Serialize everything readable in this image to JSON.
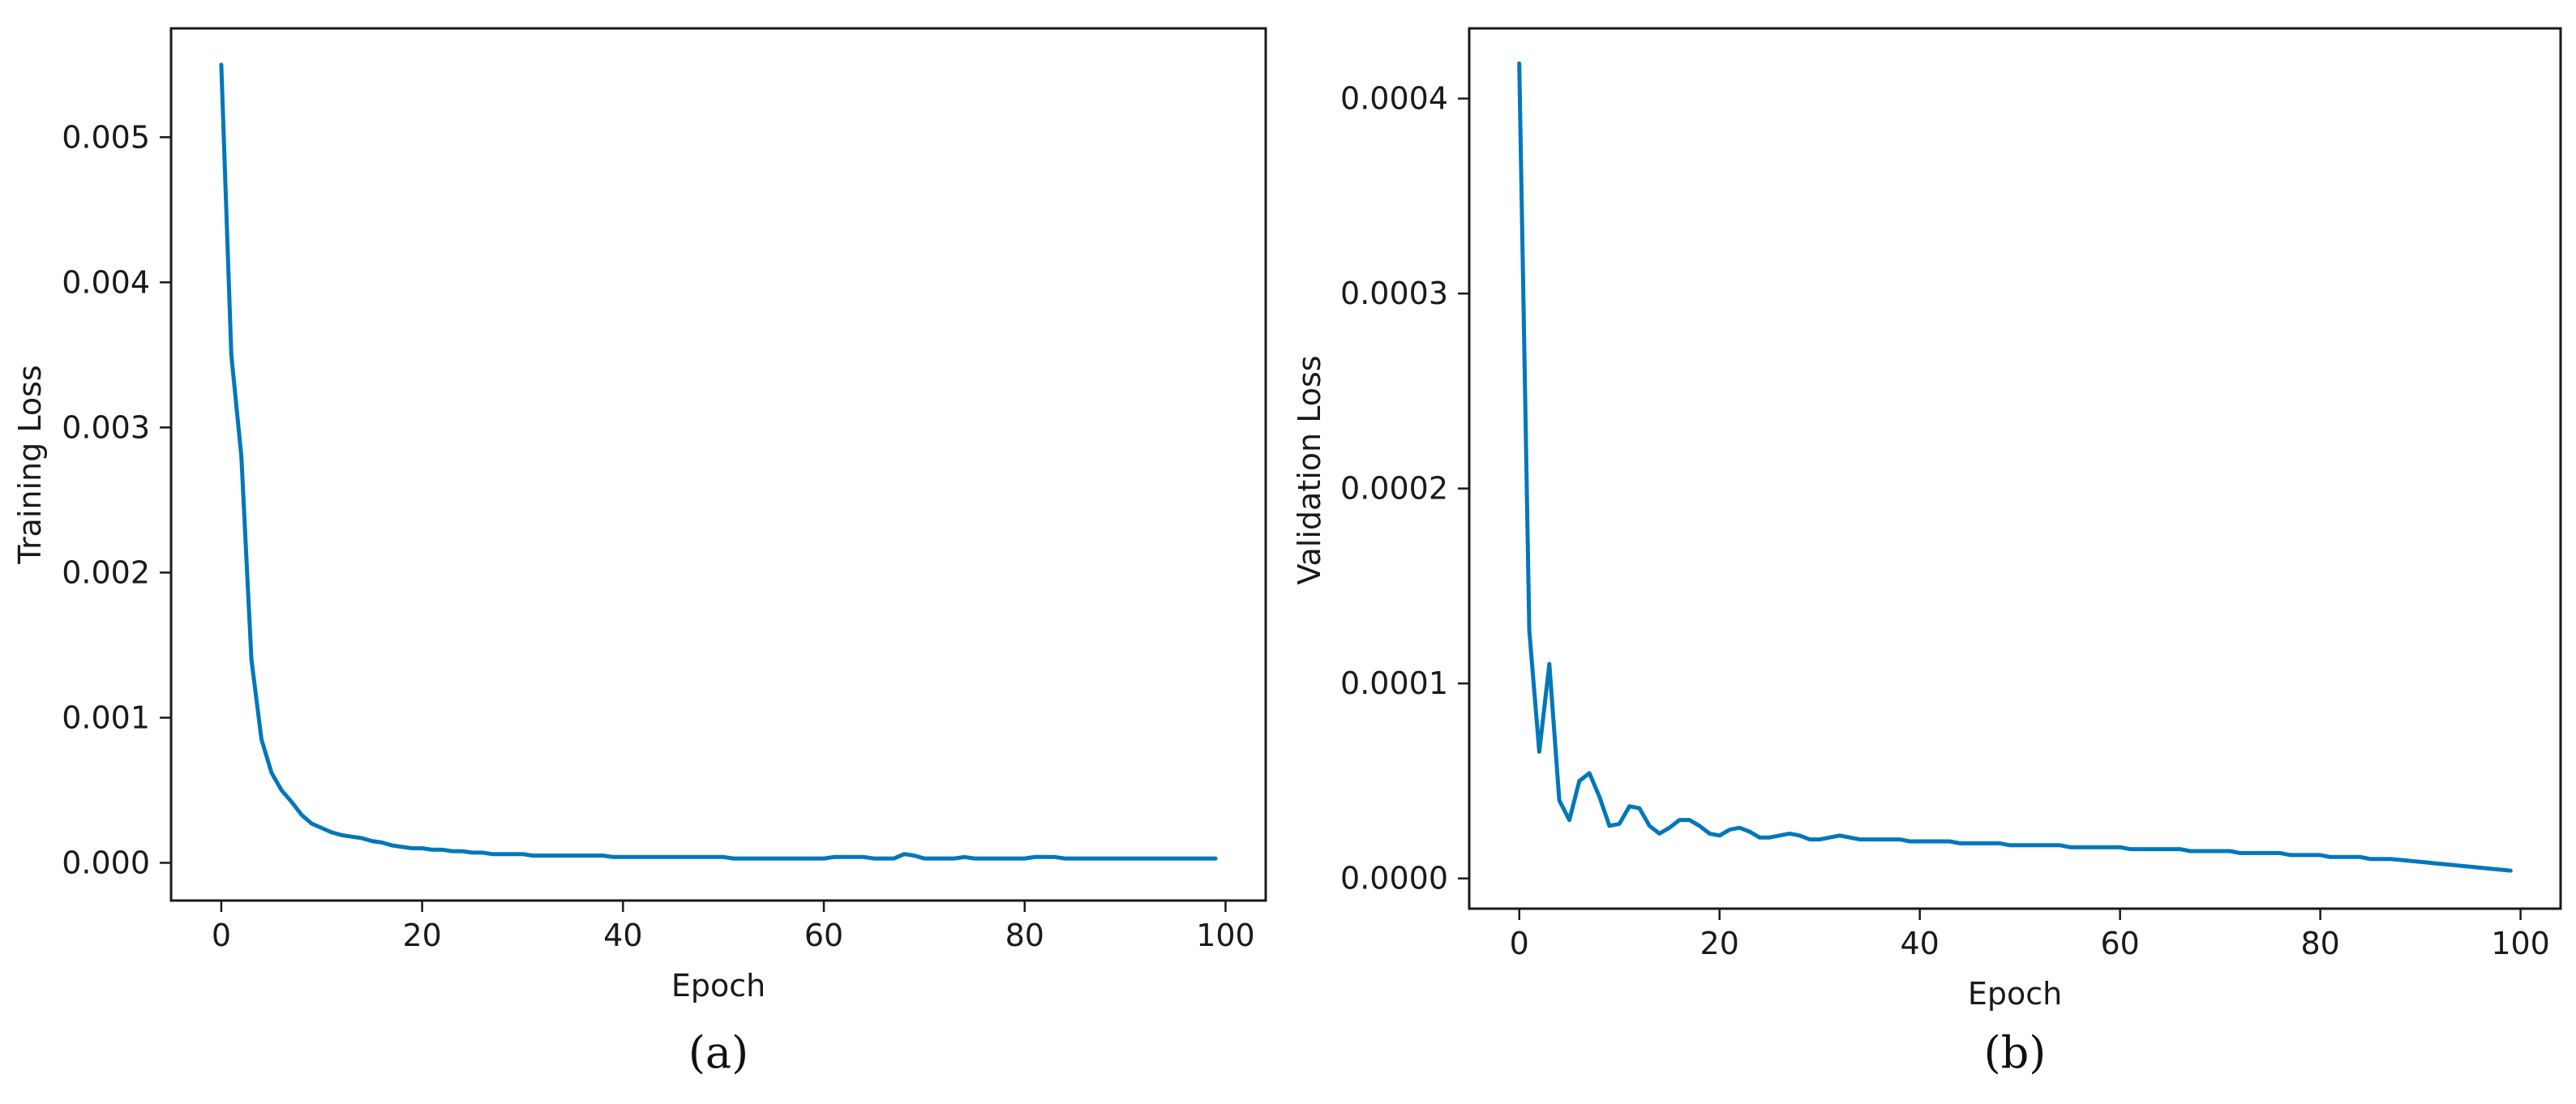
{
  "chart_data": [
    {
      "type": "line",
      "caption": "(a)",
      "xlabel": "Epoch",
      "ylabel": "Training Loss",
      "xlim": [
        -5,
        104
      ],
      "ylim": [
        -0.00026,
        0.00575
      ],
      "xticks": [
        0,
        20,
        40,
        60,
        80,
        100
      ],
      "xtick_labels": [
        "0",
        "20",
        "40",
        "60",
        "80",
        "100"
      ],
      "yticks": [
        0,
        0.001,
        0.002,
        0.003,
        0.004,
        0.005
      ],
      "ytick_labels": [
        "0.000",
        "0.001",
        "0.002",
        "0.003",
        "0.004",
        "0.005"
      ],
      "grid": false,
      "color": "#0077bb",
      "series": [
        {
          "x": [
            0,
            1,
            2,
            3,
            4,
            5,
            6,
            7,
            8,
            9,
            10,
            11,
            12,
            13,
            14,
            15,
            16,
            17,
            18,
            19,
            20,
            21,
            22,
            23,
            24,
            25,
            26,
            27,
            28,
            29,
            30,
            31,
            32,
            33,
            34,
            35,
            36,
            37,
            38,
            39,
            40,
            41,
            42,
            43,
            44,
            45,
            46,
            47,
            48,
            49,
            50,
            51,
            52,
            53,
            54,
            55,
            56,
            57,
            58,
            59,
            60,
            61,
            62,
            63,
            64,
            65,
            66,
            67,
            68,
            69,
            70,
            71,
            72,
            73,
            74,
            75,
            76,
            77,
            78,
            79,
            80,
            81,
            82,
            83,
            84,
            85,
            86,
            87,
            88,
            89,
            90,
            91,
            92,
            93,
            94,
            95,
            96,
            97,
            98,
            99
          ],
          "y": [
            0.0055,
            0.0035,
            0.0028,
            0.0014,
            0.00085,
            0.00062,
            0.0005,
            0.00042,
            0.00033,
            0.00027,
            0.00024,
            0.00021,
            0.00019,
            0.00018,
            0.00017,
            0.00015,
            0.00014,
            0.00012,
            0.00011,
            0.0001,
            0.0001,
            9e-05,
            9e-05,
            8e-05,
            8e-05,
            7e-05,
            7e-05,
            6e-05,
            6e-05,
            6e-05,
            6e-05,
            5e-05,
            5e-05,
            5e-05,
            5e-05,
            5e-05,
            5e-05,
            5e-05,
            5e-05,
            4e-05,
            4e-05,
            4e-05,
            4e-05,
            4e-05,
            4e-05,
            4e-05,
            4e-05,
            4e-05,
            4e-05,
            4e-05,
            4e-05,
            3e-05,
            3e-05,
            3e-05,
            3e-05,
            3e-05,
            3e-05,
            3e-05,
            3e-05,
            3e-05,
            3e-05,
            4e-05,
            4e-05,
            4e-05,
            4e-05,
            3e-05,
            3e-05,
            3e-05,
            6e-05,
            5e-05,
            3e-05,
            3e-05,
            3e-05,
            3e-05,
            4e-05,
            3e-05,
            3e-05,
            3e-05,
            3e-05,
            3e-05,
            3e-05,
            4e-05,
            4e-05,
            4e-05,
            3e-05,
            3e-05,
            3e-05,
            3e-05,
            3e-05,
            3e-05,
            3e-05,
            3e-05,
            3e-05,
            3e-05,
            3e-05,
            3e-05,
            3e-05,
            3e-05,
            3e-05,
            3e-05
          ]
        }
      ]
    },
    {
      "type": "line",
      "caption": "(b)",
      "xlabel": "Epoch",
      "ylabel": "Validation Loss",
      "xlim": [
        -5,
        104
      ],
      "ylim": [
        -1.55e-05,
        0.000436
      ],
      "xticks": [
        0,
        20,
        40,
        60,
        80,
        100
      ],
      "xtick_labels": [
        "0",
        "20",
        "40",
        "60",
        "80",
        "100"
      ],
      "yticks": [
        0,
        0.0001,
        0.0002,
        0.0003,
        0.0004
      ],
      "ytick_labels": [
        "0.0000",
        "0.0001",
        "0.0002",
        "0.0003",
        "0.0004"
      ],
      "grid": false,
      "color": "#0077bb",
      "series": [
        {
          "x": [
            0,
            1,
            2,
            3,
            4,
            5,
            6,
            7,
            8,
            9,
            10,
            11,
            12,
            13,
            14,
            15,
            16,
            17,
            18,
            19,
            20,
            21,
            22,
            23,
            24,
            25,
            26,
            27,
            28,
            29,
            30,
            31,
            32,
            33,
            34,
            35,
            36,
            37,
            38,
            39,
            40,
            41,
            42,
            43,
            44,
            45,
            46,
            47,
            48,
            49,
            50,
            51,
            52,
            53,
            54,
            55,
            56,
            57,
            58,
            59,
            60,
            61,
            62,
            63,
            64,
            65,
            66,
            67,
            68,
            69,
            70,
            71,
            72,
            73,
            74,
            75,
            76,
            77,
            78,
            79,
            80,
            81,
            82,
            83,
            84,
            85,
            86,
            87,
            88,
            89,
            90,
            91,
            92,
            93,
            94,
            95,
            96,
            97,
            98,
            99
          ],
          "y": [
            0.000418,
            0.000127,
            6.5e-05,
            0.00011,
            4e-05,
            3e-05,
            5e-05,
            5.4e-05,
            4.2e-05,
            2.7e-05,
            2.8e-05,
            3.7e-05,
            3.6e-05,
            2.7e-05,
            2.3e-05,
            2.6e-05,
            3e-05,
            3e-05,
            2.7e-05,
            2.3e-05,
            2.2e-05,
            2.5e-05,
            2.6e-05,
            2.4e-05,
            2.1e-05,
            2.1e-05,
            2.2e-05,
            2.3e-05,
            2.2e-05,
            2e-05,
            2e-05,
            2.1e-05,
            2.2e-05,
            2.1e-05,
            2e-05,
            2e-05,
            2e-05,
            2e-05,
            2e-05,
            1.9e-05,
            1.9e-05,
            1.9e-05,
            1.9e-05,
            1.9e-05,
            1.8e-05,
            1.8e-05,
            1.8e-05,
            1.8e-05,
            1.8e-05,
            1.7e-05,
            1.7e-05,
            1.7e-05,
            1.7e-05,
            1.7e-05,
            1.7e-05,
            1.6e-05,
            1.6e-05,
            1.6e-05,
            1.6e-05,
            1.6e-05,
            1.6e-05,
            1.5e-05,
            1.5e-05,
            1.5e-05,
            1.5e-05,
            1.5e-05,
            1.5e-05,
            1.4e-05,
            1.4e-05,
            1.4e-05,
            1.4e-05,
            1.4e-05,
            1.3e-05,
            1.3e-05,
            1.3e-05,
            1.3e-05,
            1.3e-05,
            1.2e-05,
            1.2e-05,
            1.2e-05,
            1.2e-05,
            1.1e-05,
            1.1e-05,
            1.1e-05,
            1.1e-05,
            1e-05,
            1e-05,
            1e-05,
            9.5e-06,
            9e-06,
            8.5e-06,
            8e-06,
            7.5e-06,
            7e-06,
            6.5e-06,
            6e-06,
            5.5e-06,
            5e-06,
            4.5e-06,
            4e-06
          ]
        }
      ]
    }
  ]
}
